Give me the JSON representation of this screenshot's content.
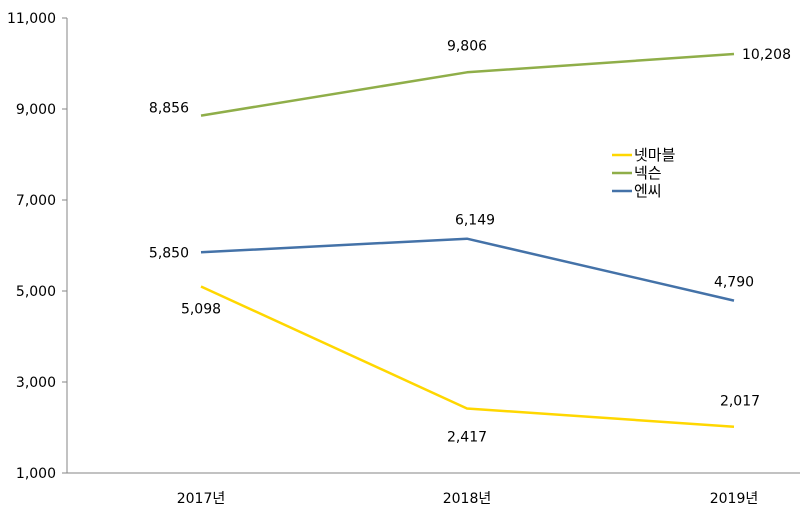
{
  "chart_data": {
    "type": "line",
    "title": "",
    "xlabel": "",
    "ylabel": "",
    "categories": [
      "2017년",
      "2018년",
      "2019년"
    ],
    "ylim": [
      1000,
      11000
    ],
    "yticks": [
      1000,
      3000,
      5000,
      7000,
      9000,
      11000
    ],
    "ytick_labels": [
      "1,000",
      "3,000",
      "5,000",
      "7,000",
      "9,000",
      "11,000"
    ],
    "grid": false,
    "legend_position": "right-middle",
    "series": [
      {
        "name": "넷마블",
        "color": "#FFD700",
        "values": [
          5098,
          2417,
          2017
        ],
        "labels": [
          "5,098",
          "2,417",
          "2,017"
        ]
      },
      {
        "name": "넥슨",
        "color": "#8FAE49",
        "values": [
          8856,
          9806,
          10208
        ],
        "labels": [
          "8,856",
          "9,806",
          "10,208"
        ]
      },
      {
        "name": "엔씨",
        "color": "#4472A8",
        "values": [
          5850,
          6149,
          4790
        ],
        "labels": [
          "5,850",
          "6,149",
          "4,790"
        ]
      }
    ]
  }
}
